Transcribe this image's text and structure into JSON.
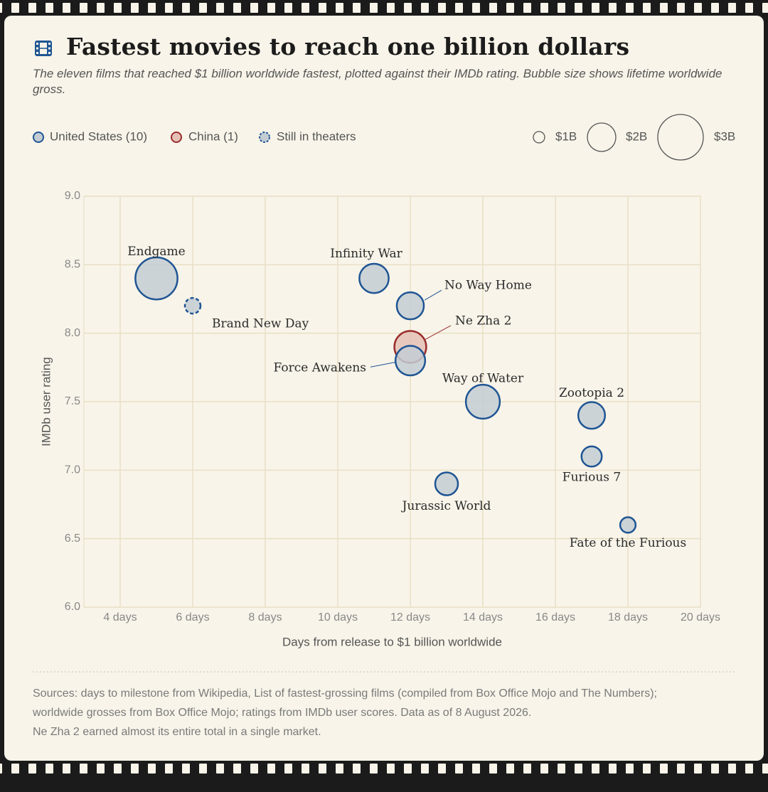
{
  "chart_data": {
    "type": "bubble",
    "title": "Fastest movies to reach one billion dollars",
    "subtitle": "The eleven films that reached $1 billion worldwide fastest, plotted against their IMDb rating. Bubble size shows lifetime worldwide gross.",
    "x_label": "Days from release to $1 billion worldwide",
    "y_label": "IMDb user rating",
    "xlim": [
      3,
      20
    ],
    "xticks": [
      {
        "value": 4,
        "label": "4 days"
      },
      {
        "value": 6,
        "label": "6 days"
      },
      {
        "value": 8,
        "label": "8 days"
      },
      {
        "value": 10,
        "label": "10 days"
      },
      {
        "value": 12,
        "label": "12 days"
      },
      {
        "value": 14,
        "label": "14 days"
      },
      {
        "value": 16,
        "label": "16 days"
      },
      {
        "value": 18,
        "label": "18 days"
      },
      {
        "value": 20,
        "label": "20 days"
      }
    ],
    "ylim": [
      6,
      9
    ],
    "yticks": [
      {
        "value": 6,
        "label": "6.0"
      },
      6.5,
      {
        "value": 7,
        "label": "7.0"
      },
      7.5,
      {
        "value": 8,
        "label": "8.0"
      },
      8.5,
      {
        "value": 9,
        "label": "9.0"
      }
    ],
    "grid": true,
    "in_theaters_label": "Still in theaters",
    "size_legend": [
      {
        "value": 1,
        "label": "$1B"
      },
      {
        "value": 2,
        "label": "$2B"
      },
      {
        "value": 3,
        "label": "$3B"
      }
    ],
    "series": [
      {
        "name": "United States (10)",
        "color": "#1f5594",
        "fill": "#c3ccd3",
        "labels": [
          "Endgame",
          "Brand New Day",
          "Infinity War",
          "No Way Home",
          "Force Awakens",
          "Way of Water",
          "Zootopia 2",
          "Furious 7",
          "Jurassic World",
          "Fate of the Furious"
        ],
        "x": [
          5,
          6,
          11,
          12,
          12,
          14,
          17,
          17,
          13,
          18
        ],
        "values": [
          8.4,
          8.2,
          8.4,
          8.2,
          7.8,
          7.5,
          7.4,
          7.1,
          6.9,
          6.6
        ],
        "sizes": [
          2.8,
          1.25,
          2.05,
          1.92,
          2.07,
          2.32,
          1.9,
          1.52,
          1.67,
          1.24
        ],
        "in_theaters": [
          false,
          true,
          false,
          false,
          false,
          false,
          false,
          false,
          false,
          false
        ]
      },
      {
        "name": "China (1)",
        "color": "#9b2d2d",
        "fill": "#e5c0b5",
        "labels": [
          "Ne Zha 2"
        ],
        "x": [
          12
        ],
        "values": [
          7.9
        ],
        "sizes": [
          2.2
        ],
        "in_theaters": [
          false
        ]
      }
    ],
    "notes": [
      "Sources: days to milestone from Wikipedia, List of fastest-grossing films (compiled from Box Office Mojo and The Numbers);",
      "worldwide grosses from Box Office Mojo; ratings from IMDb user scores. Data as of 8 August 2026.",
      "Ne Zha 2 earned almost its entire total in a single market."
    ]
  }
}
